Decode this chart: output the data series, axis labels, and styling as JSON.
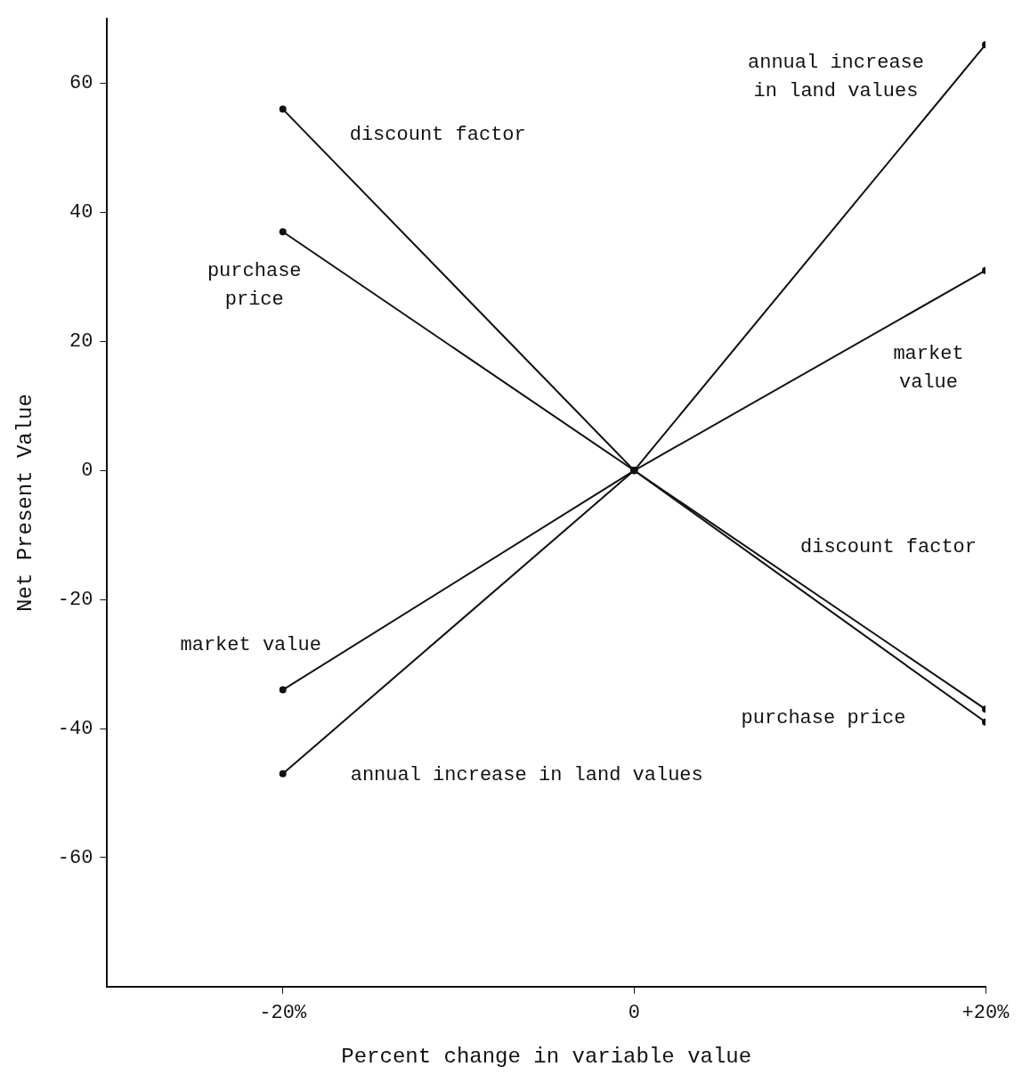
{
  "chart_data": {
    "type": "line",
    "xlabel": "Percent change in variable value",
    "ylabel": "Net Present Value",
    "x": [
      -20,
      0,
      20
    ],
    "series": [
      {
        "name": "discount factor",
        "color": "#111111",
        "values": [
          56,
          0,
          -37
        ]
      },
      {
        "name": "purchase price",
        "color": "#111111",
        "values": [
          37,
          0,
          -39
        ]
      },
      {
        "name": "annual increase in land values",
        "color": "#111111",
        "values": [
          -47,
          0,
          66
        ]
      },
      {
        "name": "market value",
        "color": "#111111",
        "values": [
          -34,
          0,
          31
        ]
      }
    ],
    "xlim": [
      -30,
      20
    ],
    "xticks": [
      {
        "value": -20,
        "label": "-20%"
      },
      0,
      {
        "value": 20,
        "label": "+20%"
      }
    ],
    "ylim": [
      -80,
      70
    ],
    "yticks": [
      -60,
      -40,
      -20,
      0,
      20,
      40,
      60
    ],
    "grid": false,
    "legend": false,
    "marker": "circle",
    "line_style": "solid",
    "annotations": [
      "discount factor",
      "purchase price",
      "annual increase in land values",
      "market value"
    ]
  }
}
